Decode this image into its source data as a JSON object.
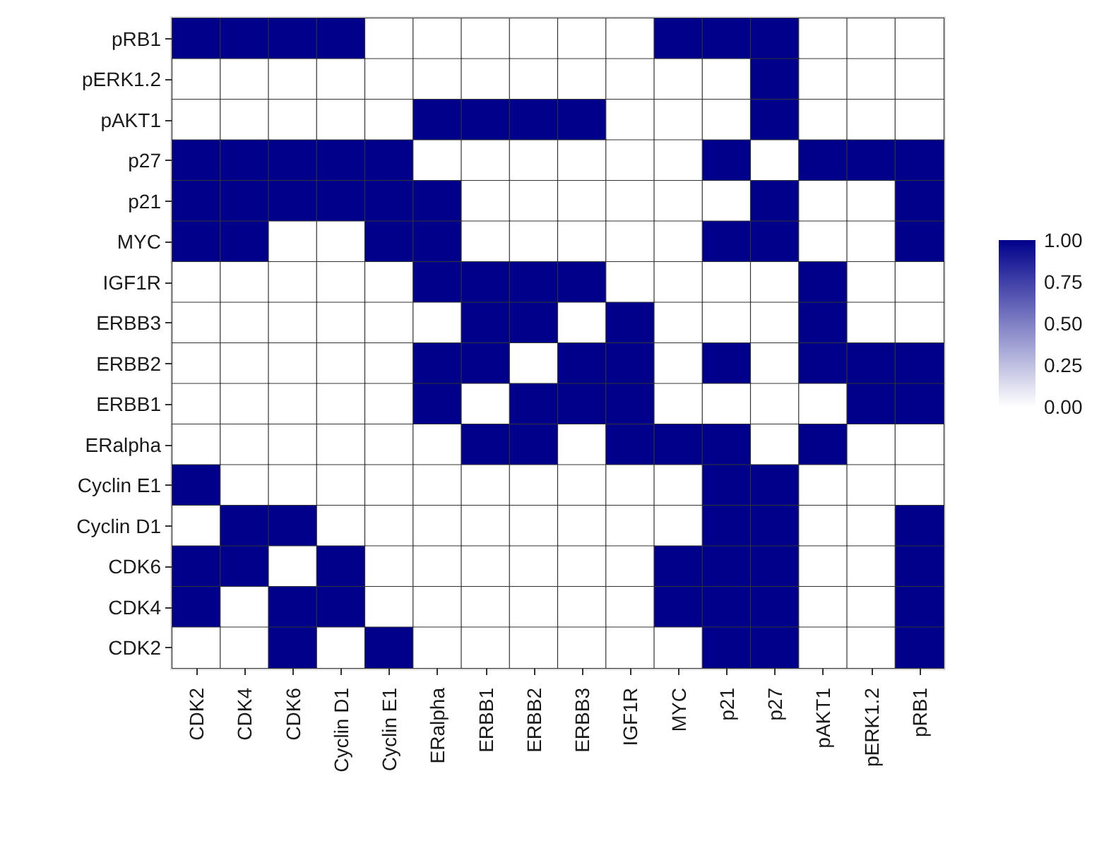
{
  "chart_data": {
    "type": "heatmap",
    "categories": [
      "CDK2",
      "CDK4",
      "CDK6",
      "Cyclin D1",
      "Cyclin E1",
      "ERalpha",
      "ERBB1",
      "ERBB2",
      "ERBB3",
      "IGF1R",
      "MYC",
      "p21",
      "p27",
      "pAKT1",
      "pERK1.2",
      "pRB1"
    ],
    "y_categories": [
      "pRB1",
      "pERK1.2",
      "pAKT1",
      "p27",
      "p21",
      "MYC",
      "IGF1R",
      "ERBB3",
      "ERBB2",
      "ERBB1",
      "ERalpha",
      "Cyclin E1",
      "Cyclin D1",
      "CDK6",
      "CDK4",
      "CDK2"
    ],
    "cells": [
      [
        1,
        1,
        1,
        1,
        0,
        0,
        0,
        0,
        0,
        0,
        1,
        1,
        1,
        0,
        0,
        0
      ],
      [
        0,
        0,
        0,
        0,
        0,
        0,
        0,
        0,
        0,
        0,
        0,
        0,
        1,
        0,
        0,
        0
      ],
      [
        0,
        0,
        0,
        0,
        0,
        1,
        1,
        1,
        1,
        0,
        0,
        0,
        1,
        0,
        0,
        0
      ],
      [
        1,
        1,
        1,
        1,
        1,
        0,
        0,
        0,
        0,
        0,
        0,
        1,
        0,
        1,
        1,
        1
      ],
      [
        1,
        1,
        1,
        1,
        1,
        1,
        0,
        0,
        0,
        0,
        0,
        0,
        1,
        0,
        0,
        1
      ],
      [
        1,
        1,
        0,
        0,
        1,
        1,
        0,
        0,
        0,
        0,
        0,
        1,
        1,
        0,
        0,
        1
      ],
      [
        0,
        0,
        0,
        0,
        0,
        1,
        1,
        1,
        1,
        0,
        0,
        0,
        0,
        1,
        0,
        0
      ],
      [
        0,
        0,
        0,
        0,
        0,
        0,
        1,
        1,
        0,
        1,
        0,
        0,
        0,
        1,
        0,
        0
      ],
      [
        0,
        0,
        0,
        0,
        0,
        1,
        1,
        0,
        1,
        1,
        0,
        1,
        0,
        1,
        1,
        1
      ],
      [
        0,
        0,
        0,
        0,
        0,
        1,
        0,
        1,
        1,
        1,
        0,
        0,
        0,
        0,
        1,
        1
      ],
      [
        0,
        0,
        0,
        0,
        0,
        0,
        1,
        1,
        0,
        1,
        1,
        1,
        0,
        1,
        0,
        0
      ],
      [
        1,
        0,
        0,
        0,
        0,
        0,
        0,
        0,
        0,
        0,
        0,
        1,
        1,
        0,
        0,
        0
      ],
      [
        0,
        1,
        1,
        0,
        0,
        0,
        0,
        0,
        0,
        0,
        0,
        1,
        1,
        0,
        0,
        1
      ],
      [
        1,
        1,
        0,
        1,
        0,
        0,
        0,
        0,
        0,
        0,
        1,
        1,
        1,
        0,
        0,
        1
      ],
      [
        1,
        0,
        1,
        1,
        0,
        0,
        0,
        0,
        0,
        0,
        1,
        1,
        1,
        0,
        0,
        1
      ],
      [
        0,
        0,
        1,
        0,
        1,
        0,
        0,
        0,
        0,
        0,
        0,
        1,
        1,
        0,
        0,
        1
      ]
    ],
    "clim": [
      0,
      1
    ],
    "cticks": [
      {
        "value": 0,
        "label": "0.00"
      },
      {
        "value": 0.25,
        "label": "0.25"
      },
      {
        "value": 0.5,
        "label": "0.50"
      },
      {
        "value": 0.75,
        "label": "0.75"
      },
      {
        "value": 1,
        "label": "1.00"
      }
    ],
    "color": "#00008b"
  }
}
